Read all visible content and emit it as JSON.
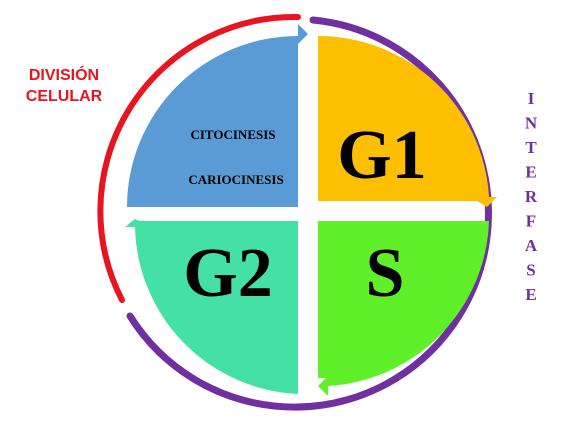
{
  "phases": {
    "g1": "G1",
    "s": "S",
    "g2": "G2",
    "m_line1": "CITOCINESIS",
    "m_line2": "CARIOCINESIS"
  },
  "labels": {
    "division_line1": "DIVISIÓN",
    "division_line2": "CELULAR",
    "interfase": "INTERFASE"
  },
  "colors": {
    "g1": "#fcc000",
    "s": "#5ff02a",
    "g2": "#44e0a6",
    "m": "#5b9bd5",
    "interfase": "#7030a0",
    "division": "#e8141f",
    "text": "#000000"
  }
}
